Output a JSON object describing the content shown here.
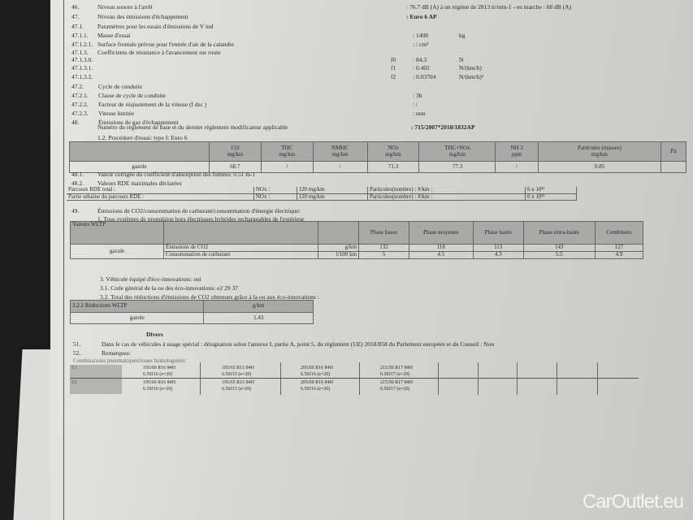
{
  "items": [
    {
      "num": "46.",
      "label": "Niveau sonore à l'arrêt",
      "value": ":  76.7 dB (A)   à un régime de 2813 tr/min-1 - en marche :   68 dB (A)"
    },
    {
      "num": "47.",
      "label": "Niveau des émissions d'échappement",
      "value": ": Euro 6 AP"
    },
    {
      "num": "47.1.",
      "label": "Paramètres pour les essais d'émissions de V ind"
    },
    {
      "num": "47.1.1.",
      "label": "Masse d'essai",
      "value": ": 1408",
      "unit": "kg"
    },
    {
      "num": "47.1.2.1.",
      "label": "Surface frontale prévue pour l'entrée d'air de la calandre",
      "value": ": / cm²"
    },
    {
      "num": "47.1.3.",
      "label": "Coefficients de résistance à l'avancement sur route"
    },
    {
      "num": "47.1.3.0.",
      "coef": "f0",
      "value": ": 84.3",
      "unit": "N"
    },
    {
      "num": "47.1.3.1.",
      "coef": "f1",
      "value": ": 0.402",
      "unit": "N/(km/h)"
    },
    {
      "num": "47.1.3.2.",
      "coef": "f2",
      "value": ": 0.03704",
      "unit": "N/(km/h)²"
    },
    {
      "num": "47.2.",
      "label": "Cycle de conduite"
    },
    {
      "num": "47.2.1.",
      "label": "Classe de cycle de conduite",
      "value": ": 3b"
    },
    {
      "num": "47.2.2.",
      "label": "Facteur de réajustement de la vitesse (f dsc )",
      "value": ": /"
    },
    {
      "num": "47.2.3.",
      "label": "Vitesse limitée",
      "value": ": non"
    },
    {
      "num": "48.",
      "label": "Émissions de gaz d'échappement"
    }
  ],
  "reg_label": "Numéro du règlement de base et du dernier règlement modificateur applicable",
  "reg_value": ": 715/2007*2018/1832AP",
  "procedure": "1.2. Procédure d'essai: type I: Euro 6",
  "emissions": {
    "headers": [
      [
        "CO",
        "mg/km"
      ],
      [
        "THC",
        "mg/km"
      ],
      [
        "NMHC",
        "mg/km"
      ],
      [
        "NOx",
        "mg/km"
      ],
      [
        "THC+NOx",
        "mg/km"
      ],
      [
        "NH 3",
        "ppm"
      ],
      [
        "Particules (masses)",
        "mg/km"
      ],
      [
        "Pa",
        ""
      ]
    ],
    "row_label": "gazole",
    "values": [
      "68.7",
      "/",
      "/",
      "71.3",
      "77.3",
      "/",
      "0.85",
      ""
    ]
  },
  "i481": {
    "num": "48.1.",
    "label": "Valeur corrigée du coefficient d'absorption des fumées: 0.51 m-1"
  },
  "i482": {
    "num": "48.2.",
    "label": "Valeurs RDE maximales déclarées"
  },
  "rde": [
    {
      "label": "Parcours RDE total :",
      "nox": "NOx :",
      "nox_val": "120 mg/km",
      "pn": "Particules(nombre) : #/km :",
      "pn_val": "6 x 10¹¹"
    },
    {
      "label": "Partie urbaine du parcours RDE    :",
      "nox": "NOx :",
      "nox_val": "120 mg/km",
      "pn": "Particules(nombre) : #/km :",
      "pn_val": "6 x 10¹¹"
    }
  ],
  "i49": {
    "num": "49.",
    "label": "Émissions de CO2/consommation de carburant/consommation d'énergie électrique:"
  },
  "wltp_intro": "1. Tous systèmes de propulsion hors électriques hybrides rechargeables de l'extérieur",
  "wltp": {
    "title": "Valeurs WLTP",
    "phases": [
      "Phase basse",
      "Phase moyenne",
      "Phase haute",
      "Phase extra-haute",
      "Combinées"
    ],
    "fuel": "gazole",
    "rows": [
      {
        "label": "Émissions de CO2",
        "unit": "g/km",
        "values": [
          "132",
          "118",
          "113",
          "143",
          "127"
        ]
      },
      {
        "label": "Consommation de carburant",
        "unit": "l/100 km",
        "values": [
          "5",
          "4.5",
          "4.3",
          "5.5",
          "4.9"
        ]
      }
    ]
  },
  "eco": [
    "3. Véhicule équipé d'éco-innovations: oui",
    "3.1. Code général de la ou des éco-innovations: e2 29 37",
    "3.2. Total des réductions d'émissions de CO2 obtenues grâce à la ou aux éco-innovations :"
  ],
  "reduction": {
    "header": "3.2.2 Réductions WLTP",
    "unit": "g/km",
    "fuel": "gazole",
    "value": "1.43"
  },
  "divers": "Divers",
  "i51": {
    "num": "51.",
    "label": "Dans le cas de véhicules à usage spécial : désignation selon l'annexe I, partie A, point 5, du règlement (UE) 2018/858 du Parlement européen et du Conseil : Non"
  },
  "i52": {
    "num": "52.",
    "label": "Remarques:"
  },
  "tyres_label": "Combinaisons pneumatiques/roues homologuées:",
  "tyres": [
    {
      "axle": "E1",
      "sets": [
        [
          "195/60 R16 84H",
          "6.50J16 (e=20)"
        ],
        [
          "195/65 R15 84H",
          "6.50J15 (e=20)"
        ],
        [
          "205/60 R16 84H",
          "6.50J16 (e=20)"
        ],
        [
          "215/50 R17 84H",
          "6.50J17 (e=20)"
        ]
      ]
    },
    {
      "axle": "E2",
      "sets": [
        [
          "195/60 R16 84H",
          "6.50J16 (e=20)"
        ],
        [
          "195/65 R15 84H",
          "6.50J15 (e=20)"
        ],
        [
          "205/60 R16 84H",
          "6.50J16 (e=20)"
        ],
        [
          "215/50 R17 84H",
          "6.50J17 (e=20)"
        ]
      ]
    }
  ],
  "watermark": "CarOutlet.eu"
}
